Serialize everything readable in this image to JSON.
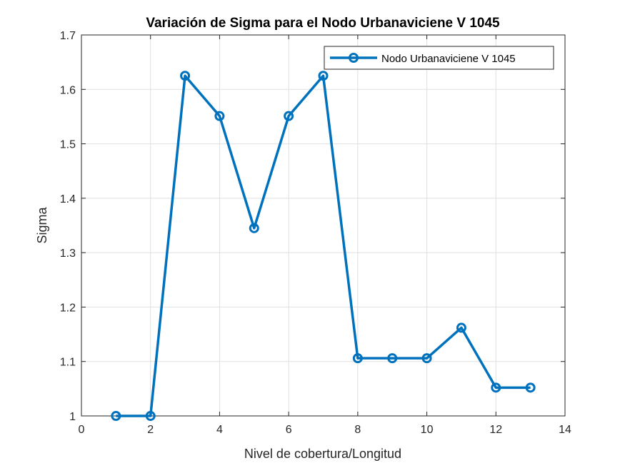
{
  "chart_data": {
    "type": "line",
    "title": "Variación de Sigma para el Nodo Urbanaviciene V 1045",
    "xlabel": "Nivel de cobertura/Longitud",
    "ylabel": "Sigma",
    "xlim": [
      0,
      14
    ],
    "ylim": [
      1,
      1.7
    ],
    "xticks": [
      0,
      2,
      4,
      6,
      8,
      10,
      12,
      14
    ],
    "yticks": [
      1,
      1.1,
      1.2,
      1.3,
      1.4,
      1.5,
      1.6,
      1.7
    ],
    "xtick_labels": [
      "0",
      "2",
      "4",
      "6",
      "8",
      "10",
      "12",
      "14"
    ],
    "ytick_labels": [
      "1",
      "1.1",
      "1.2",
      "1.3",
      "1.4",
      "1.5",
      "1.6",
      "1.7"
    ],
    "grid": true,
    "legend_position": "top-right",
    "series": [
      {
        "name": "Nodo Urbanaviciene V 1045",
        "color": "#0072BD",
        "marker": "circle",
        "x": [
          1,
          2,
          3,
          4,
          5,
          6,
          7,
          8,
          9,
          10,
          11,
          12,
          13
        ],
        "y": [
          1.0,
          1.0,
          1.625,
          1.551,
          1.345,
          1.551,
          1.625,
          1.106,
          1.106,
          1.106,
          1.162,
          1.052,
          1.052
        ]
      }
    ]
  }
}
